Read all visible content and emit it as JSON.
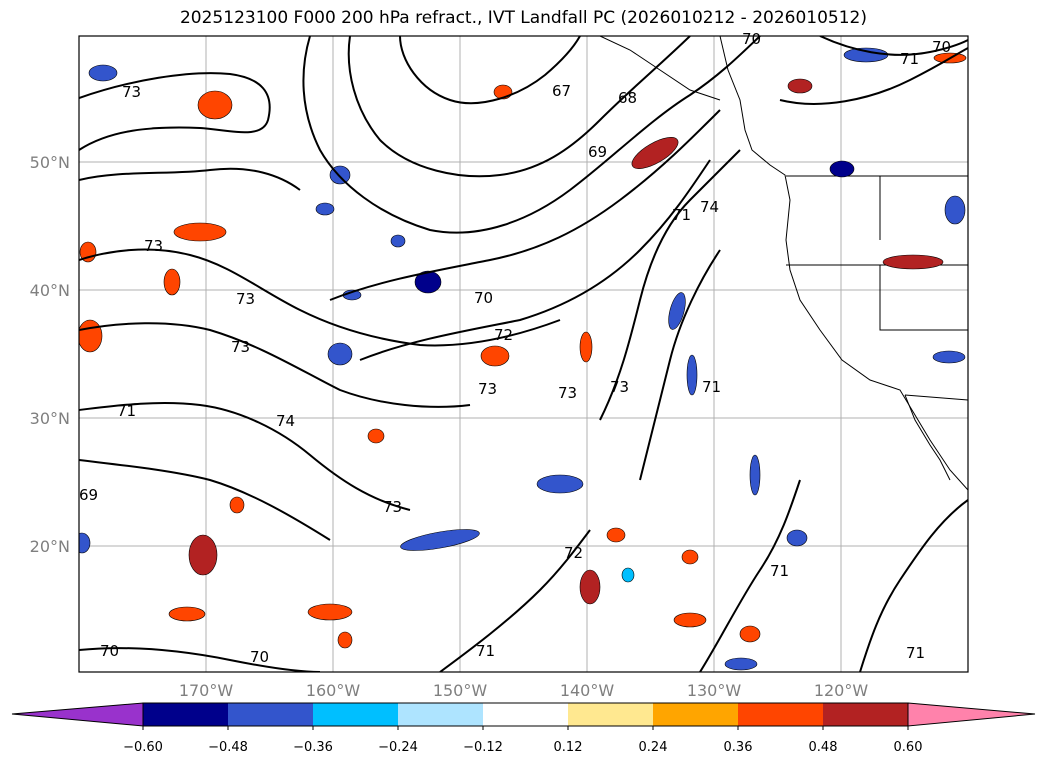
{
  "title": "2025123100 F000 200 hPa refract., IVT Landfall PC (2026010212 - 2026010512)",
  "lat_labels": [
    "50°N",
    "40°N",
    "30°N",
    "20°N"
  ],
  "lon_labels": [
    "170°W",
    "160°W",
    "150°W",
    "140°W",
    "130°W",
    "120°W"
  ],
  "contour_labels": [
    "73",
    "67",
    "68",
    "69",
    "70",
    "71",
    "70",
    "71",
    "73",
    "74",
    "73",
    "73",
    "70",
    "72",
    "73",
    "73",
    "73",
    "71",
    "71",
    "74",
    "73",
    "69",
    "72",
    "71",
    "70",
    "70",
    "71",
    "71"
  ],
  "colorbar": {
    "ticks": [
      "−0.60",
      "−0.48",
      "−0.36",
      "−0.24",
      "−0.12",
      "0.12",
      "0.24",
      "0.36",
      "0.48",
      "0.60"
    ],
    "colors": [
      "#9932cc",
      "#00008b",
      "#3355cc",
      "#00bfff",
      "#aee4ff",
      "#ffffff",
      "#ffe890",
      "#ffa500",
      "#ff4500",
      "#b22222",
      "#ff82ab"
    ]
  }
}
